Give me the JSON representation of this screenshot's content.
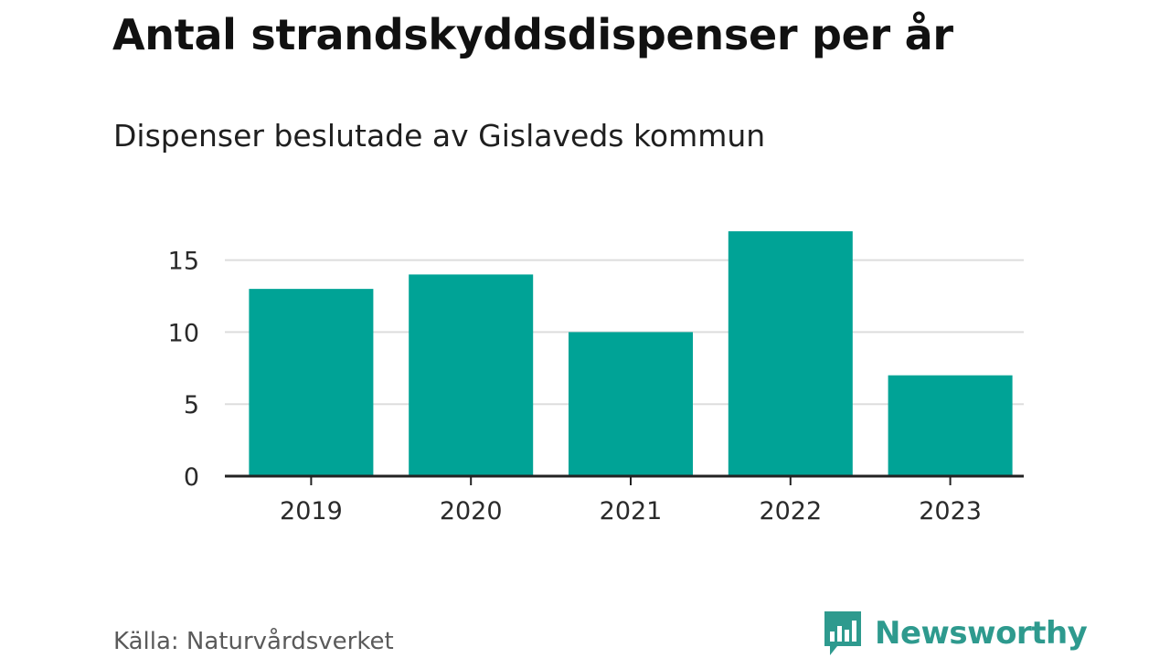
{
  "chart_data": {
    "type": "bar",
    "title": "Antal strandskyddsdispenser per år",
    "subtitle": "Dispenser beslutade av Gislaveds kommun",
    "categories": [
      "2019",
      "2020",
      "2021",
      "2022",
      "2023"
    ],
    "values": [
      13,
      14,
      10,
      17,
      7
    ],
    "yticks": [
      "0",
      "5",
      "10",
      "15"
    ],
    "ylim": [
      0,
      17
    ],
    "grid": true,
    "bar_color": "#00a396",
    "grid_color": "#dddddd",
    "axis_color": "#222222"
  },
  "footer": {
    "source": "Källa: Naturvårdsverket",
    "brand_name": "Newsworthy",
    "brand_icon": "newsworthy-logo-icon",
    "brand_color": "#2e9a8e"
  }
}
